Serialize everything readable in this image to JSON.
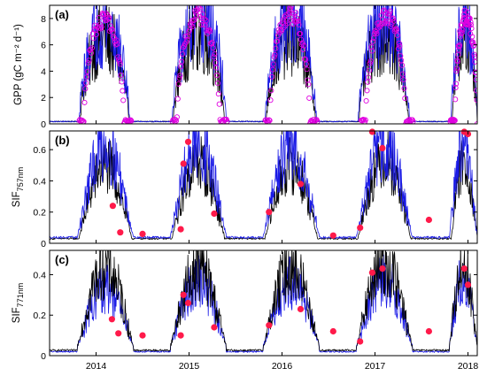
{
  "chart_data": [
    {
      "type": "line",
      "panel": "(a)",
      "ylabel": "GPP (gC m⁻² d⁻¹)",
      "xlim": [
        2013.5,
        2018.1
      ],
      "ylim": [
        0,
        9
      ],
      "yticks": [
        "0",
        "2",
        "4",
        "6",
        "8"
      ],
      "series": [
        {
          "role": "black-line",
          "color": "#000000",
          "season_peaks": [
            6.5,
            6.8,
            6.4,
            6.6,
            6.2
          ],
          "season_starts": [
            2013.83,
            2014.83,
            2015.83,
            2016.83,
            2017.83
          ],
          "season_ends": [
            2014.35,
            2015.38,
            2016.36,
            2017.36,
            2018.1
          ]
        },
        {
          "role": "blue-line",
          "color": "#1a1ae6",
          "season_peaks": [
            7.6,
            8.3,
            8.0,
            7.9,
            7.6
          ],
          "season_starts": [
            2013.82,
            2014.82,
            2015.82,
            2016.82,
            2017.82
          ],
          "season_ends": [
            2014.36,
            2015.4,
            2016.37,
            2017.37,
            2018.1
          ]
        },
        {
          "role": "magenta-circles",
          "color": "#e000e0",
          "season_peaks": [
            8.6,
            8.9,
            9.0,
            8.9,
            8.8
          ],
          "season_starts": [
            2013.87,
            2014.87,
            2015.87,
            2016.9,
            2017.86
          ],
          "season_ends": [
            2014.3,
            2015.33,
            2016.3,
            2017.33,
            2018.1
          ]
        }
      ]
    },
    {
      "type": "line",
      "panel": "(b)",
      "ylabel": "SIF",
      "ylabel_sub": "757nm",
      "xlim": [
        2013.5,
        2018.1
      ],
      "ylim": [
        0,
        0.72
      ],
      "yticks": [
        "0",
        "0.2",
        "0.4",
        "0.6"
      ],
      "series": [
        {
          "role": "black-line",
          "color": "#000000",
          "season_peaks": [
            0.5,
            0.52,
            0.5,
            0.55,
            0.52
          ],
          "season_starts": [
            2013.82,
            2014.82,
            2015.82,
            2016.82,
            2017.82
          ],
          "season_ends": [
            2014.38,
            2015.38,
            2016.38,
            2017.38,
            2018.1
          ]
        },
        {
          "role": "blue-line",
          "color": "#1a1ae6",
          "season_peaks": [
            0.63,
            0.63,
            0.62,
            0.63,
            0.64
          ],
          "season_starts": [
            2013.8,
            2014.8,
            2015.8,
            2016.8,
            2017.8
          ],
          "season_ends": [
            2014.4,
            2015.4,
            2016.4,
            2017.4,
            2018.1
          ]
        }
      ],
      "points": {
        "color": "#ff1a4a",
        "x": [
          2014.18,
          2014.26,
          2014.5,
          2014.91,
          2014.94,
          2014.99,
          2015.27,
          2015.86,
          2016.2,
          2016.55,
          2016.84,
          2016.97,
          2017.08,
          2017.58,
          2017.96,
          2018.0
        ],
        "y": [
          0.24,
          0.07,
          0.06,
          0.09,
          0.51,
          0.65,
          0.19,
          0.2,
          0.38,
          0.05,
          0.1,
          0.74,
          0.61,
          0.15,
          0.72,
          0.7
        ]
      }
    },
    {
      "type": "line",
      "panel": "(c)",
      "ylabel": "SIF",
      "ylabel_sub": "771nm",
      "xlim": [
        2013.5,
        2018.1
      ],
      "ylim": [
        0,
        0.52
      ],
      "yticks": [
        "0",
        "0.2",
        "0.4"
      ],
      "xticks": [
        "2014",
        "2015",
        "2016",
        "2017",
        "2018"
      ],
      "series": [
        {
          "role": "black-line",
          "color": "#000000",
          "season_peaks": [
            0.44,
            0.43,
            0.44,
            0.45,
            0.45
          ],
          "season_starts": [
            2013.8,
            2014.8,
            2015.8,
            2016.8,
            2017.8
          ],
          "season_ends": [
            2014.4,
            2015.4,
            2016.4,
            2017.4,
            2018.1
          ]
        },
        {
          "role": "blue-line",
          "color": "#1a1ae6",
          "season_peaks": [
            0.33,
            0.37,
            0.36,
            0.37,
            0.38
          ],
          "season_starts": [
            2013.8,
            2014.8,
            2015.8,
            2016.8,
            2017.8
          ],
          "season_ends": [
            2014.4,
            2015.4,
            2016.4,
            2017.4,
            2018.1
          ]
        }
      ],
      "points": {
        "color": "#ff1a4a",
        "x": [
          2014.17,
          2014.24,
          2014.5,
          2014.91,
          2014.94,
          2014.99,
          2015.27,
          2015.86,
          2016.2,
          2016.55,
          2016.84,
          2016.97,
          2017.08,
          2017.58,
          2017.96,
          2018.0
        ],
        "y": [
          0.18,
          0.11,
          0.1,
          0.1,
          0.3,
          0.26,
          0.14,
          0.15,
          0.23,
          0.12,
          0.07,
          0.41,
          0.43,
          0.12,
          0.43,
          0.35
        ]
      }
    }
  ]
}
